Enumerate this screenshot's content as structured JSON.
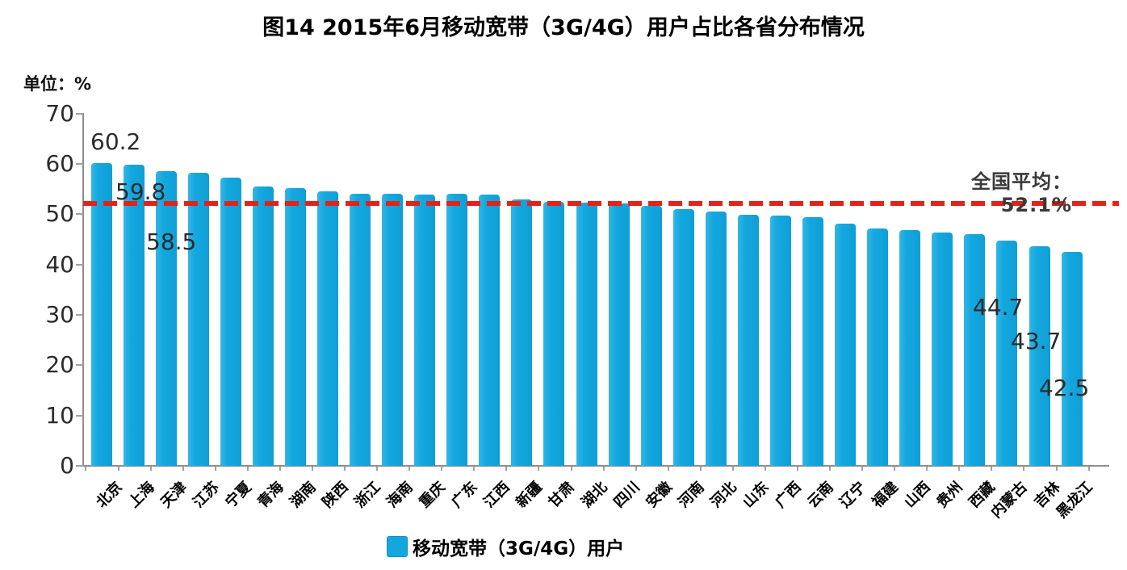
{
  "header": {
    "title": "图14 2015年6月移动宽带（3G/4G）用户占比各省分布情况"
  },
  "chart_data": {
    "type": "bar",
    "title": "图14 2015年6月移动宽带（3G/4G）用户占比各省分布情况",
    "unit_label": "单位：%",
    "xlabel": "",
    "ylabel": "%",
    "ylim": [
      0,
      70
    ],
    "yticks": [
      70,
      60,
      50,
      40,
      30,
      20,
      10,
      0
    ],
    "grid": false,
    "bar_color": "#14a7de",
    "categories": [
      "北京",
      "上海",
      "天津",
      "江苏",
      "宁夏",
      "青海",
      "湖南",
      "陕西",
      "浙江",
      "海南",
      "重庆",
      "广东",
      "江西",
      "新疆",
      "甘肃",
      "湖北",
      "四川",
      "安徽",
      "河南",
      "河北",
      "山东",
      "广西",
      "云南",
      "辽宁",
      "福建",
      "山西",
      "贵州",
      "西藏",
      "内蒙古",
      "吉林",
      "黑龙江"
    ],
    "values": [
      60.2,
      59.8,
      58.5,
      58.3,
      57.3,
      55.5,
      55.2,
      54.5,
      54.0,
      54.1,
      53.9,
      54.0,
      53.9,
      53.0,
      52.5,
      52.3,
      52.1,
      51.6,
      51.0,
      50.5,
      49.9,
      49.7,
      49.4,
      48.1,
      47.1,
      46.8,
      46.4,
      46.1,
      44.7,
      43.7,
      42.5
    ],
    "value_labels_shown": [
      {
        "category": "北京",
        "text": "60.2"
      },
      {
        "category": "上海",
        "text": "59.8"
      },
      {
        "category": "天津",
        "text": "58.5"
      },
      {
        "category": "内蒙古",
        "text": "44.7"
      },
      {
        "category": "吉林",
        "text": "43.7"
      },
      {
        "category": "黑龙江",
        "text": "42.5"
      }
    ],
    "average_line": {
      "value": 52.1,
      "label": "全国平均：52.1%",
      "color": "#e2231a",
      "style": "dashed"
    },
    "legend": [
      {
        "label": "移动宽带（3G/4G）用户",
        "color": "#14a7de"
      }
    ],
    "legend_position": "bottom"
  }
}
